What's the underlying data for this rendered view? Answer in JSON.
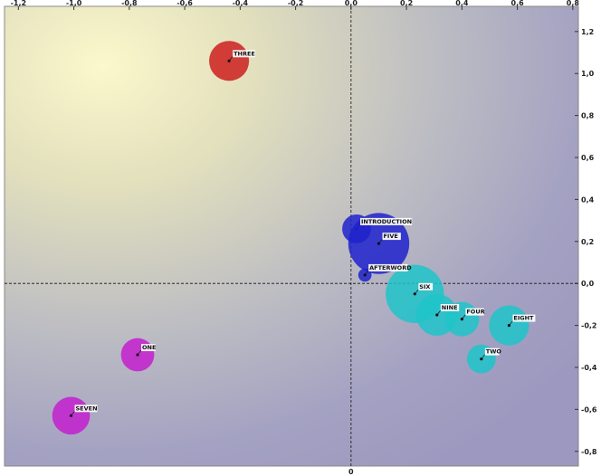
{
  "chart_data": {
    "type": "scatter",
    "title": "",
    "xlabel": "",
    "ylabel": "",
    "xlim": [
      -1.25,
      0.82
    ],
    "ylim": [
      -0.87,
      1.32
    ],
    "grid": false,
    "x_ticks": [
      "-1,2",
      "-1,0",
      "-0,8",
      "-0,6",
      "-0,4",
      "-0,2",
      "0,0",
      "0,2",
      "0,4",
      "0,6",
      "0,8"
    ],
    "x_tick_values": [
      -1.2,
      -1.0,
      -0.8,
      -0.6,
      -0.4,
      -0.2,
      0.0,
      0.2,
      0.4,
      0.6,
      0.8
    ],
    "y_ticks": [
      "1,2",
      "1,0",
      "0,8",
      "0,6",
      "0,4",
      "0,2",
      "0,0",
      "-0,2",
      "-0,4",
      "-0,6",
      "-0,8"
    ],
    "y_tick_values": [
      1.2,
      1.0,
      0.8,
      0.6,
      0.4,
      0.2,
      0.0,
      -0.2,
      -0.4,
      -0.6,
      -0.8
    ],
    "axis_zero_label": "0",
    "colors": {
      "red": "#cc1f1f",
      "blue": "#1f22cc",
      "cyan": "#1fc4c9",
      "magenta": "#c31fcf"
    },
    "points": [
      {
        "label": "THREE",
        "x": -0.44,
        "y": 1.06,
        "size": 0.072,
        "color": "red"
      },
      {
        "label": "INTRODUCTION",
        "x": 0.02,
        "y": 0.26,
        "size": 0.052,
        "color": "blue"
      },
      {
        "label": "FIVE",
        "x": 0.1,
        "y": 0.19,
        "size": 0.11,
        "color": "blue"
      },
      {
        "label": "AFTERWORD",
        "x": 0.05,
        "y": 0.04,
        "size": 0.024,
        "color": "blue"
      },
      {
        "label": "SIX",
        "x": 0.23,
        "y": -0.05,
        "size": 0.105,
        "color": "cyan"
      },
      {
        "label": "NINE",
        "x": 0.31,
        "y": -0.15,
        "size": 0.075,
        "color": "cyan"
      },
      {
        "label": "FOUR",
        "x": 0.4,
        "y": -0.17,
        "size": 0.062,
        "color": "cyan"
      },
      {
        "label": "EIGHT",
        "x": 0.57,
        "y": -0.2,
        "size": 0.072,
        "color": "cyan"
      },
      {
        "label": "TWO",
        "x": 0.47,
        "y": -0.36,
        "size": 0.052,
        "color": "cyan"
      },
      {
        "label": "ONE",
        "x": -0.77,
        "y": -0.34,
        "size": 0.06,
        "color": "magenta"
      },
      {
        "label": "SEVEN",
        "x": -1.01,
        "y": -0.63,
        "size": 0.068,
        "color": "magenta"
      }
    ]
  }
}
